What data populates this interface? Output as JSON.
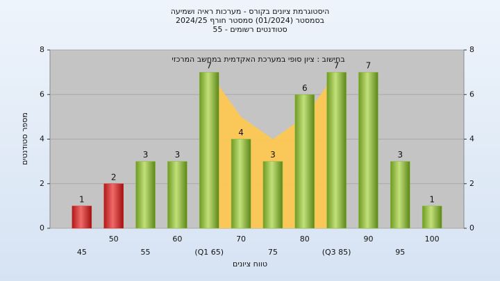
{
  "chart_data": {
    "type": "bar",
    "title": "היסטוגרמת ציונים בקורס - מערכות ראיה ושמיעה",
    "subtitle": "בסמסטר  (01/2024)  סמסטר חורף 2024/25",
    "subtitle2": "55 - סטודנטים רשומים",
    "annotation": "בחישוב : ציון סופי במערכת האקדמית במחשב המרכזי",
    "xlabel": "טווח ציונים",
    "ylabel": "מספר סטודנטים",
    "categories": [
      "45",
      "50",
      "55",
      "60",
      "(Q1 65)",
      "70",
      "75",
      "80",
      "(Q3 85)",
      "90",
      "95",
      "100"
    ],
    "values": [
      1,
      2,
      3,
      3,
      7,
      4,
      3,
      6,
      7,
      7,
      3,
      1
    ],
    "colors": [
      "#d42a2a",
      "#d42a2a",
      "#8ab83a",
      "#8ab83a",
      "#8ab83a",
      "#8ab83a",
      "#8ab83a",
      "#8ab83a",
      "#8ab83a",
      "#8ab83a",
      "#8ab83a",
      "#8ab83a"
    ],
    "area_values": [
      null,
      null,
      null,
      null,
      7,
      5,
      4,
      5,
      7,
      null,
      null,
      null
    ],
    "area_color": "#ffc94d",
    "ylim": [
      0,
      8
    ],
    "yticks": [
      0,
      2,
      4,
      6,
      8
    ],
    "y2lim": [
      0,
      8
    ],
    "y2ticks": [
      0,
      2,
      4,
      6,
      8
    ],
    "grid": true
  }
}
